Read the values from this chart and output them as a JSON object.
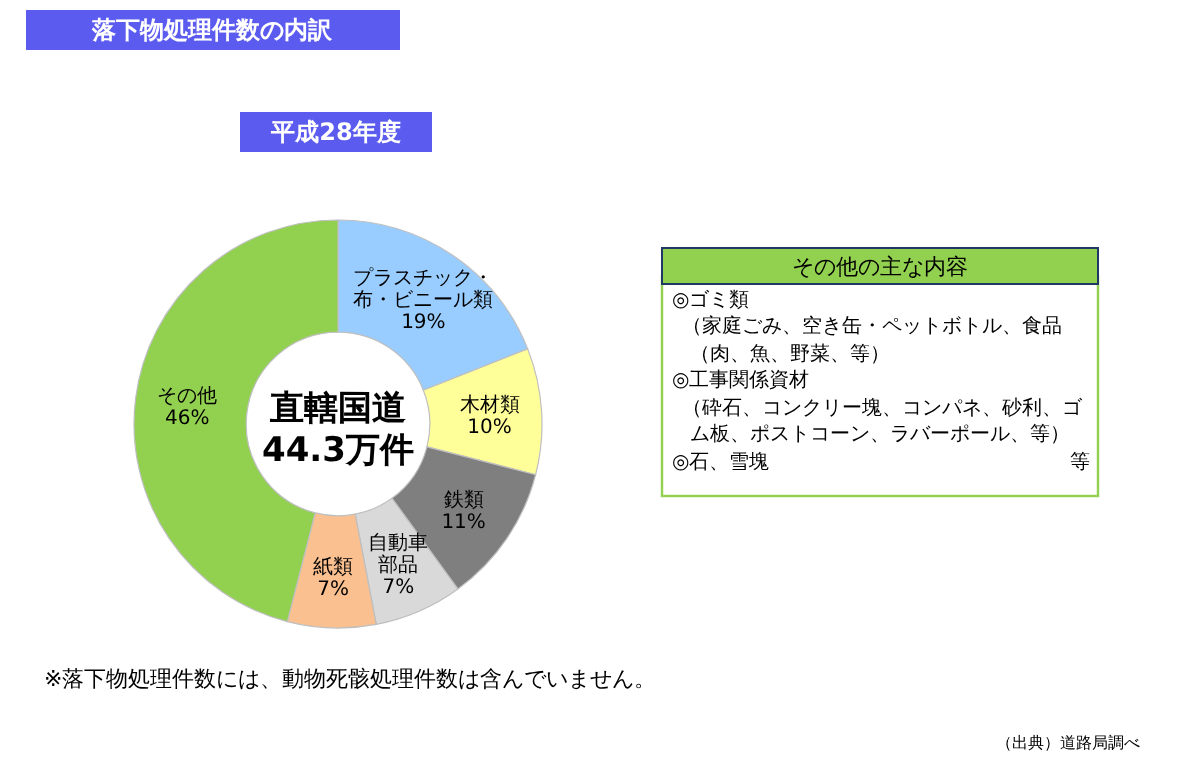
{
  "chart_data": {
    "type": "donut",
    "title": "落下物処理件数の内訳",
    "subtitle": "平成28年度",
    "categories": [
      "プラスチック・布・ビニール類",
      "木材類",
      "鉄類",
      "自動車部品",
      "紙類",
      "その他"
    ],
    "values": [
      19,
      10,
      11,
      7,
      7,
      46
    ],
    "value_labels": [
      "19%",
      "10%",
      "11%",
      "7%",
      "7%",
      "46%"
    ],
    "colors": [
      "#99ccff",
      "#ffff99",
      "#7f7f7f",
      "#d9d9d9",
      "#fac090",
      "#92d050"
    ],
    "annotations": [
      "直轄国道\n44.3万件",
      "その他の主な内容",
      "◎ゴミ類",
      "（家庭ごみ、空き缶・ペットボトル、食品",
      "（肉、魚、野菜、等）",
      "◎工事関係資材",
      "（砕石、コンクリー塊、コンパネ、砂利、ゴ",
      "ム板、ポストコーン、ラバーポール、等）",
      "◎石、雪塊",
      "等",
      "※落下物処理件数には、動物死骸処理件数は含んでいません。",
      "（出典）道路局調べ"
    ]
  }
}
